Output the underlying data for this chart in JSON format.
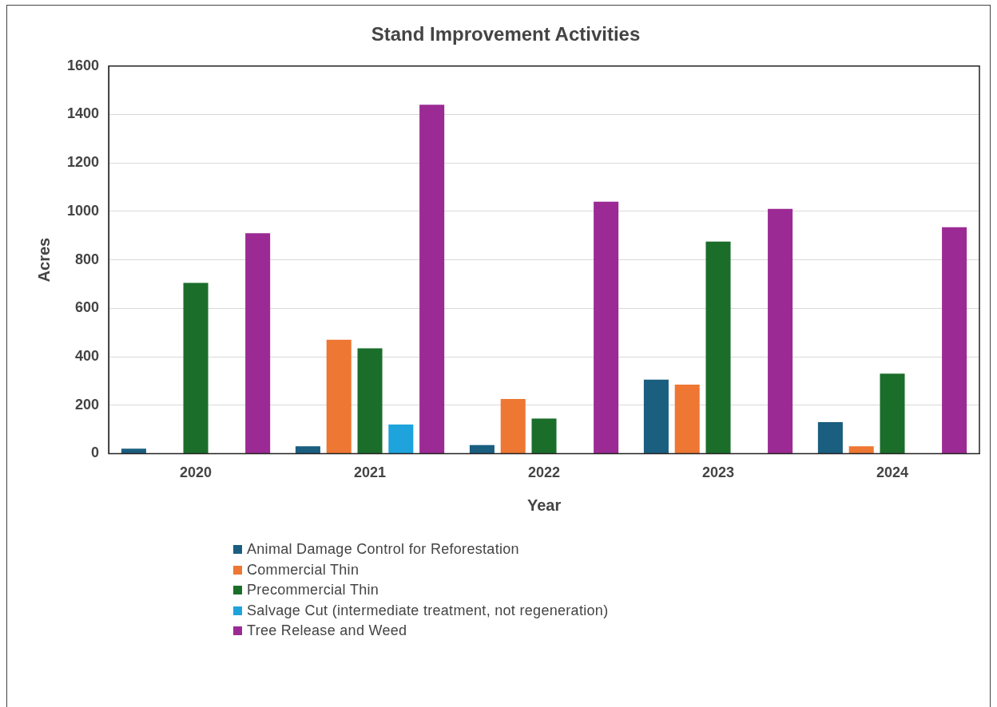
{
  "chart_data": {
    "type": "bar",
    "title": "Stand Improvement Activities",
    "xlabel": "Year",
    "ylabel": "Acres",
    "categories": [
      "2020",
      "2021",
      "2022",
      "2023",
      "2024"
    ],
    "series": [
      {
        "name": "Animal Damage Control for Reforestation",
        "color": "#1a5e80",
        "values": [
          20,
          30,
          35,
          305,
          130
        ]
      },
      {
        "name": "Commercial Thin",
        "color": "#ee7733",
        "values": [
          null,
          470,
          225,
          285,
          30
        ]
      },
      {
        "name": "Precommercial Thin",
        "color": "#1b6e2a",
        "values": [
          705,
          435,
          145,
          875,
          330
        ]
      },
      {
        "name": "Salvage Cut (intermediate treatment, not regeneration)",
        "color": "#1ea3dc",
        "values": [
          null,
          120,
          null,
          null,
          null
        ]
      },
      {
        "name": "Tree Release and Weed",
        "color": "#9c2a94",
        "values": [
          910,
          1440,
          1040,
          1010,
          935
        ]
      }
    ],
    "ylim": [
      0,
      1600
    ],
    "yticks": [
      0,
      200,
      400,
      600,
      800,
      1000,
      1200,
      1400,
      1600
    ],
    "grid": "y",
    "legend": "bottom"
  }
}
